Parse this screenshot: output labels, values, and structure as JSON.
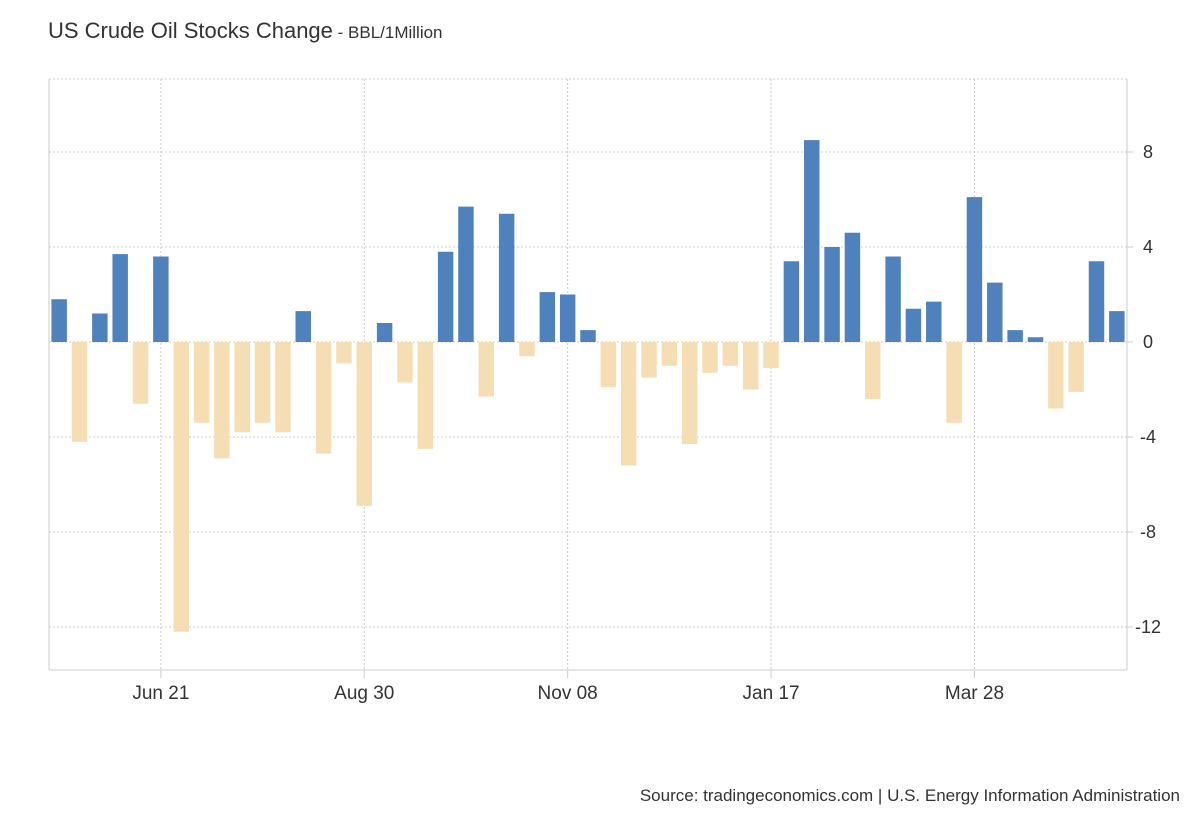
{
  "header": {
    "title": "US Crude Oil Stocks Change",
    "unit": " - BBL/1Million"
  },
  "footer": {
    "source": "Source: tradingeconomics.com | U.S. Energy Information Administration"
  },
  "colors": {
    "positive": "#4f81bd",
    "negative": "#f5deb3",
    "grid": "#cccccc",
    "axis": "#cccccc",
    "text": "#333333"
  },
  "chart_data": {
    "type": "bar",
    "title": "US Crude Oil Stocks Change",
    "ylabel": "",
    "xlabel": "",
    "ylim": [
      -14,
      11
    ],
    "yticks": [
      -12,
      -8,
      -4,
      0,
      4,
      8
    ],
    "grid": true,
    "y_axis_side": "right",
    "x_tick_labels": [
      {
        "label": "Jun 21",
        "index": 5
      },
      {
        "label": "Aug 30",
        "index": 15
      },
      {
        "label": "Nov 08",
        "index": 25
      },
      {
        "label": "Jan 17",
        "index": 35
      },
      {
        "label": "Mar 28",
        "index": 45
      }
    ],
    "series": [
      {
        "values": [
          1.8,
          -4.2,
          1.2,
          3.7,
          -2.6,
          3.6,
          -12.2,
          -3.4,
          -4.9,
          -3.8,
          -3.4,
          -3.8,
          1.3,
          -4.7,
          -0.9,
          -6.9,
          0.8,
          -1.7,
          -4.5,
          3.8,
          5.7,
          -2.3,
          5.4,
          -0.6,
          2.1,
          2.0,
          0.5,
          -1.9,
          -5.2,
          -1.5,
          -1.0,
          -4.3,
          -1.3,
          -1.0,
          -2.0,
          -1.1,
          3.4,
          8.5,
          4.0,
          4.6,
          -2.4,
          3.6,
          1.4,
          1.7,
          -3.4,
          6.1,
          2.5,
          0.5,
          0.2,
          -2.8,
          -2.1,
          3.4,
          1.3
        ]
      }
    ]
  }
}
